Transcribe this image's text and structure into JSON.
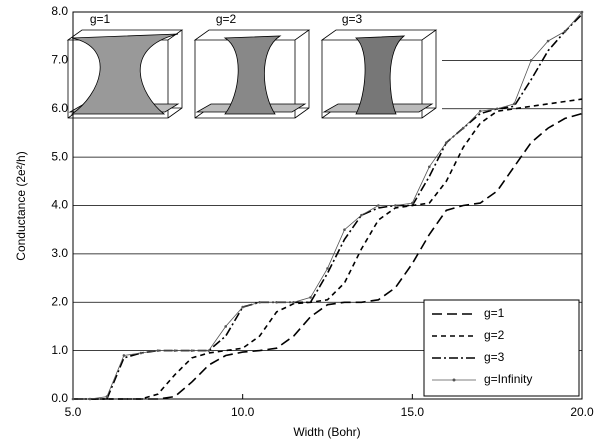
{
  "chart_data": {
    "type": "line",
    "xlabel": "Width (Bohr)",
    "ylabel": "Conductance (2e²/h)",
    "annotations": [
      "g=1",
      "g=2",
      "g=3"
    ],
    "x": [
      5.0,
      5.5,
      6.0,
      6.5,
      7.0,
      7.5,
      8.0,
      8.5,
      9.0,
      9.5,
      10.0,
      10.5,
      11.0,
      11.5,
      12.0,
      12.5,
      13.0,
      13.5,
      14.0,
      14.5,
      15.0,
      15.5,
      16.0,
      16.5,
      17.0,
      17.5,
      18.0,
      18.5,
      19.0,
      19.5,
      20.0
    ],
    "series": [
      {
        "name": "g=1",
        "color": "#000000",
        "dash": "10,5",
        "marker": false,
        "values": [
          0,
          0,
          0,
          0,
          0,
          0,
          0.05,
          0.35,
          0.7,
          0.9,
          0.97,
          1.0,
          1.05,
          1.3,
          1.7,
          1.95,
          2.0,
          2.0,
          2.05,
          2.3,
          2.8,
          3.4,
          3.9,
          4.0,
          4.05,
          4.3,
          4.8,
          5.3,
          5.6,
          5.8,
          5.9
        ]
      },
      {
        "name": "g=2",
        "color": "#000000",
        "dash": "5,4",
        "marker": false,
        "values": [
          0,
          0,
          0,
          0,
          0,
          0.1,
          0.5,
          0.85,
          0.95,
          1.0,
          1.05,
          1.3,
          1.8,
          1.97,
          2.0,
          2.05,
          2.4,
          3.1,
          3.7,
          3.95,
          4.0,
          4.05,
          4.5,
          5.2,
          5.7,
          5.95,
          6.0,
          6.05,
          6.1,
          6.15,
          6.2
        ]
      },
      {
        "name": "g=3",
        "color": "#000000",
        "dash": "9,3,2,3",
        "marker": false,
        "values": [
          0,
          0,
          0,
          0.85,
          0.95,
          1.0,
          1.0,
          1.0,
          1.0,
          1.3,
          1.9,
          2.0,
          2.0,
          2.0,
          2.0,
          2.6,
          3.3,
          3.8,
          3.95,
          4.0,
          4.0,
          4.6,
          5.3,
          5.6,
          5.9,
          6.0,
          6.05,
          6.6,
          7.2,
          7.6,
          7.95
        ]
      },
      {
        "name": "g=Infinity",
        "color": "#555555",
        "dash": "",
        "marker": true,
        "values": [
          0,
          0,
          0.05,
          0.9,
          0.95,
          1.0,
          1.0,
          1.0,
          1.0,
          1.5,
          1.9,
          2.0,
          2.0,
          2.0,
          2.1,
          2.7,
          3.5,
          3.8,
          4.0,
          4.0,
          4.05,
          4.8,
          5.3,
          5.6,
          5.95,
          6.0,
          6.1,
          7.0,
          7.4,
          7.6,
          8.0
        ]
      }
    ],
    "xlim": [
      5,
      20
    ],
    "xticks": [
      {
        "value": 5,
        "label": "5.0"
      },
      {
        "value": 10,
        "label": "10.0"
      },
      {
        "value": 15,
        "label": "15.0"
      },
      {
        "value": 20,
        "label": "20.0"
      }
    ],
    "ylim": [
      0,
      8
    ],
    "yticks": [
      {
        "value": 0,
        "label": "0.0"
      },
      {
        "value": 1,
        "label": "1.0"
      },
      {
        "value": 2,
        "label": "2.0"
      },
      {
        "value": 3,
        "label": "3.0"
      },
      {
        "value": 4,
        "label": "4.0"
      },
      {
        "value": 5,
        "label": "5.0"
      },
      {
        "value": 6,
        "label": "6.0"
      },
      {
        "value": 7,
        "label": "7.0"
      },
      {
        "value": 8,
        "label": "8.0"
      }
    ],
    "grid": true,
    "legend": "lower right"
  }
}
